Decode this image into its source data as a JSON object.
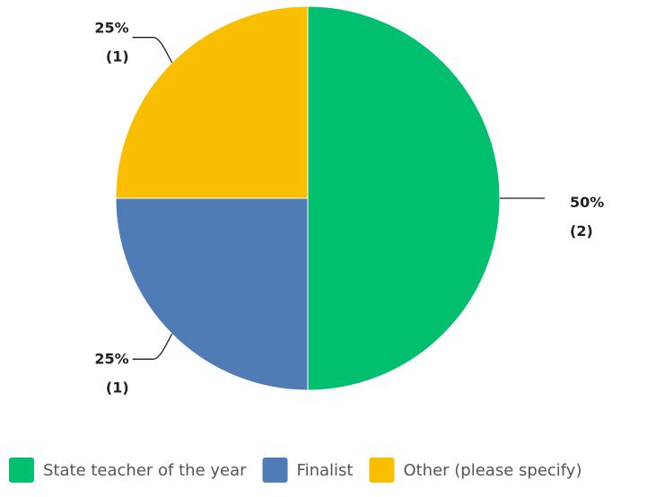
{
  "chart_data": {
    "type": "pie",
    "title": "",
    "slices": [
      {
        "label": "State teacher of the year",
        "value": 2,
        "percent": "50%",
        "count_label": "(2)",
        "color": "#00BF6F"
      },
      {
        "label": "Finalist",
        "value": 1,
        "percent": "25%",
        "count_label": "(1)",
        "color": "#507CB6"
      },
      {
        "label": "Other (please specify)",
        "value": 1,
        "percent": "25%",
        "count_label": "(1)",
        "color": "#F9BE00"
      }
    ],
    "start_angle": "12 o'clock",
    "direction": "clockwise",
    "legend": {
      "position": "bottom"
    }
  }
}
